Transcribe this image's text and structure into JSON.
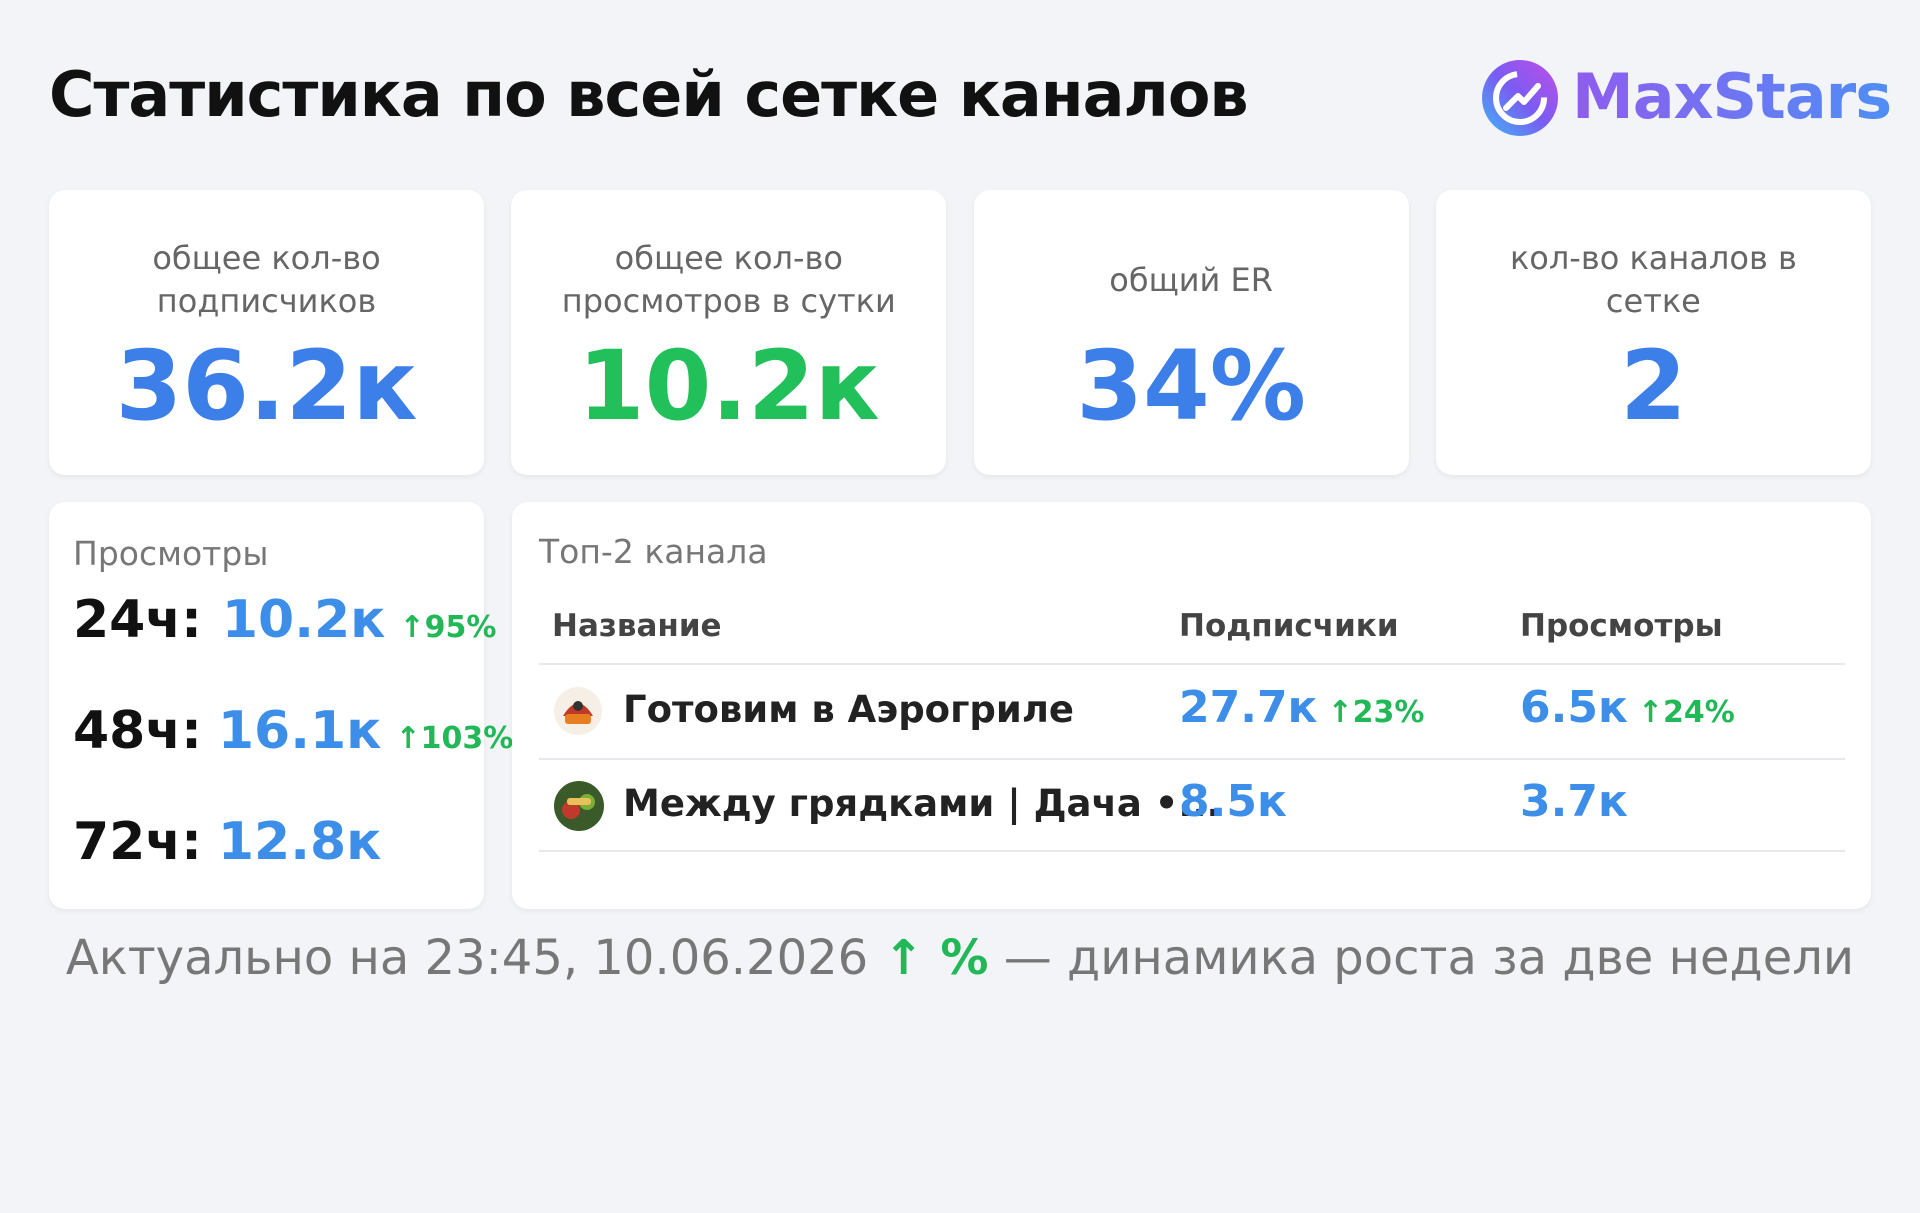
{
  "header": {
    "title": "Статистика по всей сетке каналов",
    "brand": "MaxStars"
  },
  "cards": [
    {
      "label": "общее кол-во подписчиков",
      "value": "36.2к"
    },
    {
      "label": "общее кол-во просмотров в сутки",
      "value": "10.2к"
    },
    {
      "label": "общий ER",
      "value": "34%"
    },
    {
      "label": "кол-во каналов в сетке",
      "value": "2"
    }
  ],
  "views": {
    "title": "Просмотры",
    "rows": [
      {
        "period": "24ч:",
        "value": "10.2к",
        "change": "↑95%"
      },
      {
        "period": "48ч:",
        "value": "16.1к",
        "change": "↑103%"
      },
      {
        "period": "72ч:",
        "value": "12.8к"
      }
    ]
  },
  "top": {
    "title": "Топ-2 канала",
    "columns": [
      "Название",
      "Подписчики",
      "Просмотры"
    ],
    "rows": [
      {
        "name": "Готовим в Аэрогриле",
        "subscribers": "27.7к",
        "subscribers_change": "↑23%",
        "views": "6.5к",
        "views_change": "↑24%"
      },
      {
        "name": "Между грядками | Дача •...",
        "subscribers": "8.5к",
        "views": "3.7к"
      }
    ]
  },
  "footer": {
    "text": "Актуально на 23:45, 10.06.2026",
    "highlight": "↑ %",
    "note": "— динамика роста за две недели"
  }
}
